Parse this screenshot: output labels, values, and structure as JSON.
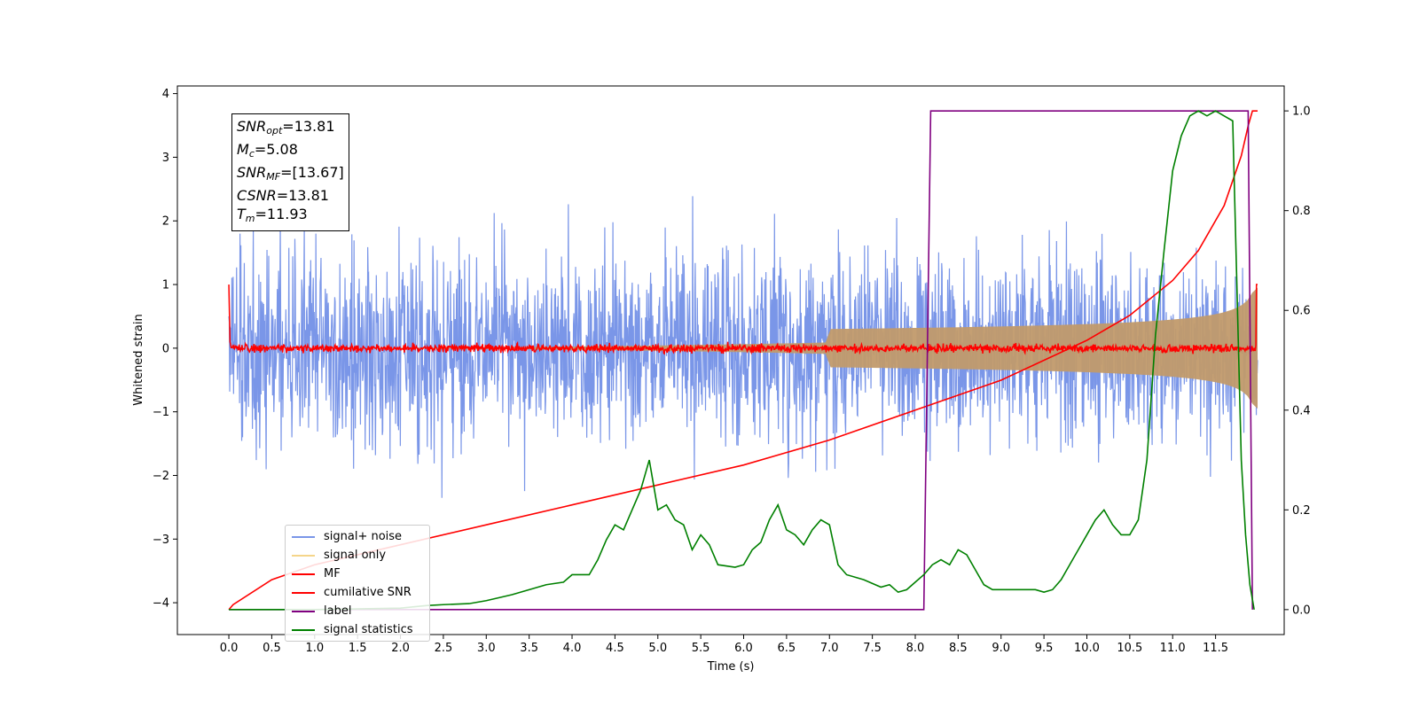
{
  "chart_data": {
    "type": "line",
    "xlabel": "Time (s)",
    "ylabel": "Whitened strain",
    "xlim": [
      -0.6,
      12.3
    ],
    "ylim_left": [
      -4.5,
      4.12
    ],
    "ylim_right": [
      -0.05,
      1.05
    ],
    "x_ticks": [
      "0.0",
      "0.5",
      "1.0",
      "1.5",
      "2.0",
      "2.5",
      "3.0",
      "3.5",
      "4.0",
      "4.5",
      "5.0",
      "5.5",
      "6.0",
      "6.5",
      "7.0",
      "7.5",
      "8.0",
      "8.5",
      "9.0",
      "9.5",
      "10.0",
      "10.5",
      "11.0",
      "11.5"
    ],
    "y_ticks_left": [
      "−4",
      "−3",
      "−2",
      "−1",
      "0",
      "1",
      "2",
      "3",
      "4"
    ],
    "y_ticks_right": [
      "0.0",
      "0.2",
      "0.4",
      "0.6",
      "0.8",
      "1.0"
    ],
    "grid": false,
    "legend_position": "lower-left",
    "stats_box": {
      "snr_opt_value": "=13.81",
      "mc_value": "=5.08",
      "snr_mf_value": "=[13.67]",
      "csnr_value": "=13.81",
      "tm_value": "=11.93"
    },
    "series": [
      {
        "name": "signal+ noise",
        "color": "#7a96e8",
        "axis": "left",
        "kind": "noise",
        "x_range": [
          0.0,
          11.99
        ],
        "amplitude": 3.2
      },
      {
        "name": "signal only",
        "color": "#f5d58a",
        "axis": "left",
        "kind": "chirp",
        "x_range": [
          0.0,
          11.99
        ],
        "amplitude_end": 0.8
      },
      {
        "name": "MF",
        "color": "#ff0000",
        "axis": "left",
        "kind": "noise",
        "x_range": [
          0.0,
          11.99
        ],
        "amplitude": 0.15
      },
      {
        "name": "cumilative SNR",
        "color": "#ff0000",
        "axis": "right",
        "x": [
          0.0,
          0.05,
          0.5,
          1.0,
          2.0,
          3.0,
          4.0,
          5.0,
          6.0,
          7.0,
          8.0,
          9.0,
          10.0,
          10.5,
          11.0,
          11.3,
          11.6,
          11.8,
          11.88,
          11.93,
          11.99
        ],
        "y": [
          0.0,
          0.01,
          0.06,
          0.09,
          0.13,
          0.17,
          0.21,
          0.25,
          0.29,
          0.34,
          0.4,
          0.46,
          0.54,
          0.59,
          0.66,
          0.72,
          0.81,
          0.91,
          0.97,
          1.0,
          1.0
        ]
      },
      {
        "name": "label",
        "color": "#800080",
        "axis": "right",
        "x": [
          0.0,
          8.1,
          8.18,
          11.88,
          11.93
        ],
        "y": [
          0.0,
          0.0,
          1.0,
          1.0,
          0.0
        ]
      },
      {
        "name": "signal statistics",
        "color": "#008000",
        "axis": "right",
        "x": [
          0.0,
          1.0,
          2.0,
          2.3,
          2.5,
          2.8,
          3.0,
          3.3,
          3.5,
          3.7,
          3.9,
          4.0,
          4.2,
          4.3,
          4.4,
          4.5,
          4.6,
          4.7,
          4.8,
          4.9,
          4.95,
          5.0,
          5.1,
          5.2,
          5.3,
          5.4,
          5.5,
          5.6,
          5.7,
          5.9,
          6.0,
          6.1,
          6.2,
          6.3,
          6.4,
          6.5,
          6.6,
          6.7,
          6.8,
          6.9,
          7.0,
          7.1,
          7.2,
          7.4,
          7.6,
          7.7,
          7.8,
          7.9,
          8.0,
          8.1,
          8.2,
          8.3,
          8.4,
          8.5,
          8.6,
          8.7,
          8.8,
          8.9,
          9.0,
          9.2,
          9.4,
          9.5,
          9.6,
          9.7,
          9.8,
          9.9,
          10.0,
          10.1,
          10.2,
          10.3,
          10.4,
          10.5,
          10.6,
          10.7,
          10.8,
          10.9,
          11.0,
          11.1,
          11.2,
          11.3,
          11.4,
          11.5,
          11.6,
          11.7,
          11.8,
          11.85,
          11.9,
          11.95
        ],
        "y": [
          0.0,
          0.0,
          0.003,
          0.008,
          0.01,
          0.012,
          0.018,
          0.03,
          0.04,
          0.05,
          0.055,
          0.07,
          0.07,
          0.1,
          0.14,
          0.17,
          0.16,
          0.2,
          0.24,
          0.3,
          0.25,
          0.2,
          0.21,
          0.18,
          0.17,
          0.12,
          0.15,
          0.13,
          0.09,
          0.085,
          0.09,
          0.12,
          0.135,
          0.18,
          0.21,
          0.16,
          0.15,
          0.13,
          0.16,
          0.18,
          0.17,
          0.09,
          0.07,
          0.06,
          0.045,
          0.05,
          0.035,
          0.04,
          0.055,
          0.07,
          0.09,
          0.1,
          0.09,
          0.12,
          0.11,
          0.08,
          0.05,
          0.04,
          0.04,
          0.04,
          0.04,
          0.035,
          0.04,
          0.06,
          0.09,
          0.12,
          0.15,
          0.18,
          0.2,
          0.17,
          0.15,
          0.15,
          0.18,
          0.3,
          0.55,
          0.72,
          0.88,
          0.95,
          0.99,
          1.0,
          0.99,
          1.0,
          0.99,
          0.98,
          0.3,
          0.15,
          0.05,
          0.0
        ]
      }
    ]
  },
  "legend": [
    {
      "label": "signal+ noise",
      "color": "#7a96e8"
    },
    {
      "label": "signal only",
      "color": "#f5d58a"
    },
    {
      "label": "MF",
      "color": "#ff0000"
    },
    {
      "label": "cumilative SNR",
      "color": "#ff0000"
    },
    {
      "label": "label",
      "color": "#800080"
    },
    {
      "label": "signal statistics",
      "color": "#008000"
    }
  ]
}
